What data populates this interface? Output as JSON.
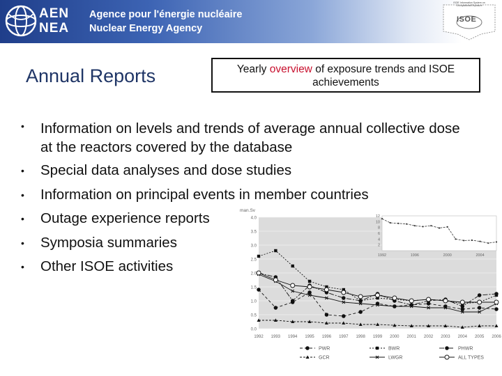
{
  "header": {
    "logo_line1": "AEN",
    "logo_line2": "NEA",
    "agency_fr": "Agence pour l'énergie nucléaire",
    "agency_en": "Nuclear Energy Agency",
    "seal_text": "ISOE Information System on Occupational Exposure",
    "seal_mark": "ISOE"
  },
  "slide": {
    "title": "Annual Reports",
    "subtitle_pre": "Yearly ",
    "subtitle_highlight": "overview",
    "subtitle_post": " of exposure trends and ISOE achievements",
    "highlight_color": "#c8102e"
  },
  "bullets": [
    "Information on levels and trends of average annual collective dose at the reactors covered by the database",
    "Special data analyses and dose studies",
    "Information on principal events in member countries",
    "Outage experience reports",
    "Symposia summaries",
    "Other ISOE activities"
  ],
  "chart_data": {
    "type": "line",
    "ylabel": "man.Sv",
    "ylim": [
      0,
      4
    ],
    "y_ticks": [
      "0.0",
      "0.5",
      "1.0",
      "1.5",
      "2.0",
      "2.5",
      "3.0",
      "3.5",
      "4.0"
    ],
    "x": [
      "1992",
      "1993",
      "1994",
      "1995",
      "1996",
      "1997",
      "1998",
      "1999",
      "2000",
      "2001",
      "2002",
      "2003",
      "2004",
      "2005",
      "2006"
    ],
    "legend_position": "bottom",
    "legend": [
      "PWR",
      "BWR",
      "PHWR",
      "GCR",
      "LWGR",
      "ALL TYPES"
    ],
    "series": [
      {
        "name": "PWR",
        "values": [
          1.4,
          0.75,
          0.95,
          1.3,
          0.5,
          0.45,
          0.6,
          0.9,
          0.8,
          0.85,
          0.9,
          0.8,
          0.7,
          0.75,
          0.7
        ]
      },
      {
        "name": "BWR",
        "values": [
          2.6,
          2.8,
          2.25,
          1.7,
          1.5,
          1.4,
          1.0,
          1.1,
          1.05,
          1.0,
          1.05,
          1.0,
          0.9,
          0.95,
          1.2
        ]
      },
      {
        "name": "PHWR",
        "values": [
          2.0,
          1.85,
          1.0,
          1.55,
          1.3,
          1.1,
          1.0,
          1.25,
          1.0,
          0.85,
          1.0,
          1.05,
          0.8,
          1.2,
          1.25
        ]
      },
      {
        "name": "GCR",
        "values": [
          0.3,
          0.3,
          0.25,
          0.25,
          0.2,
          0.2,
          0.15,
          0.15,
          0.12,
          0.1,
          0.1,
          0.1,
          0.05,
          0.1,
          0.1
        ]
      },
      {
        "name": "LWGR",
        "values": [
          1.95,
          1.7,
          1.35,
          1.2,
          1.1,
          0.95,
          0.9,
          0.85,
          0.8,
          0.8,
          0.75,
          0.75,
          0.6,
          0.6,
          0.9
        ]
      },
      {
        "name": "ALL TYPES",
        "values": [
          2.0,
          1.75,
          1.55,
          1.5,
          1.4,
          1.3,
          1.15,
          1.2,
          1.1,
          1.0,
          1.05,
          1.0,
          0.95,
          0.95,
          0.95
        ]
      }
    ],
    "inset": {
      "ylim": [
        0,
        12
      ],
      "y_ticks": [
        "2",
        "4",
        "6",
        "8",
        "10",
        "12"
      ],
      "x_ticks": [
        "1992",
        "1996",
        "2000",
        "2004"
      ],
      "x": [
        1992,
        1993,
        1994,
        1995,
        1996,
        1997,
        1998,
        1999,
        2000,
        2001,
        2002,
        2003,
        2004,
        2005,
        2006
      ],
      "values": [
        11,
        9.6,
        9.4,
        9.2,
        8.6,
        8.3,
        8.6,
        7.8,
        8.2,
        4.0,
        3.5,
        3.6,
        3.2,
        2.6,
        3.0
      ]
    }
  }
}
